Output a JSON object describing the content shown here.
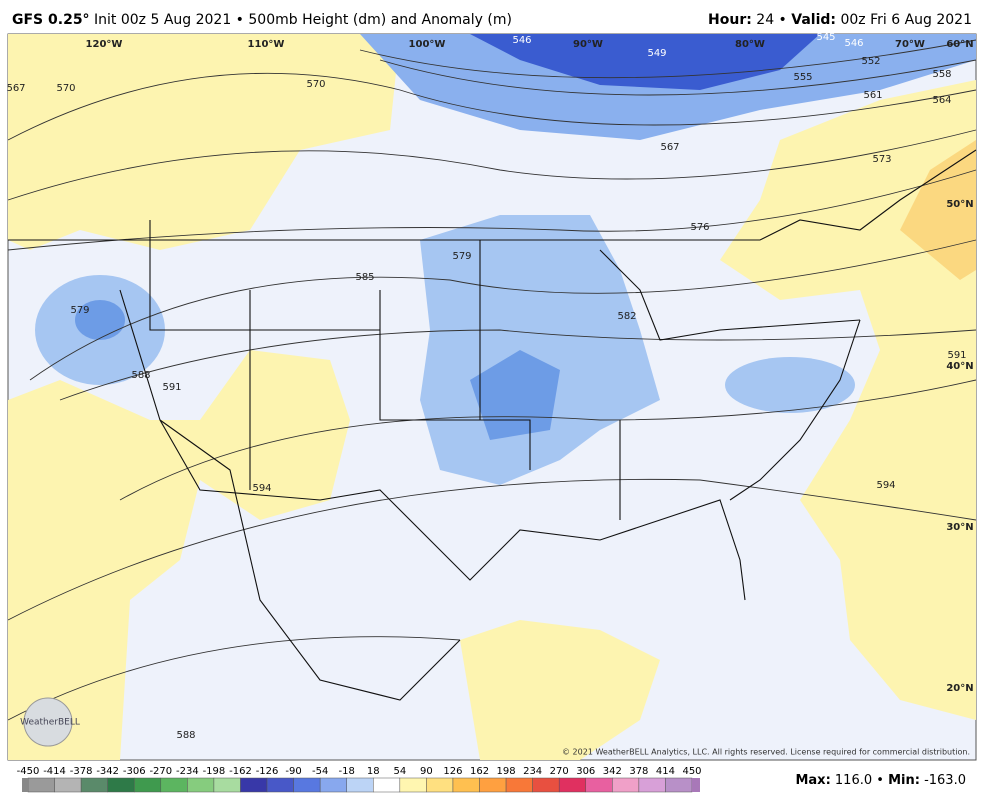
{
  "header": {
    "model": "GFS 0.25°",
    "init": "Init 00z 5 Aug 2021 • 500mb Height (dm) and Anomaly (m)",
    "hour_label": "Hour:",
    "hour": "24 •",
    "valid_label": "Valid:",
    "valid": "00z Fri 6 Aug 2021"
  },
  "map": {
    "lon_labels": [
      "120°W",
      "110°W",
      "100°W",
      "90°W",
      "80°W",
      "70°W"
    ],
    "lat_labels": [
      "60°N",
      "50°N",
      "40°N",
      "30°N",
      "20°N"
    ],
    "contour_labels": [
      "546",
      "549",
      "545",
      "546",
      "552",
      "555",
      "558",
      "561",
      "564",
      "567",
      "573",
      "576",
      "579",
      "585",
      "579",
      "582",
      "588",
      "591",
      "591",
      "594",
      "594",
      "588",
      "570",
      "567",
      "570"
    ],
    "copyright": "© 2021 WeatherBELL Analytics, LLC. All rights reserved. License required for commercial distribution.",
    "logo": "WeatherBELL"
  },
  "colorbar": {
    "ticks": [
      -450,
      -414,
      -378,
      -342,
      -306,
      -270,
      -234,
      -198,
      -162,
      -126,
      -90,
      -54,
      -18,
      18,
      54,
      90,
      126,
      162,
      198,
      234,
      270,
      306,
      342,
      378,
      414,
      450
    ],
    "colors": [
      "#9a9a9a",
      "#b4b4b4",
      "#5a8a6a",
      "#2e7a48",
      "#3f9a4e",
      "#5cb560",
      "#86cc7e",
      "#a8dca0",
      "#3838a8",
      "#4858c8",
      "#5878e0",
      "#88a8ee",
      "#bcd4f6",
      "#ffffff",
      "#fff6b0",
      "#ffe080",
      "#ffc050",
      "#ffa040",
      "#f87838",
      "#e85040",
      "#e03060",
      "#e860a0",
      "#f0a0c8",
      "#d8a0d8",
      "#b890c8"
    ]
  },
  "footer": {
    "max_label": "Max:",
    "max": "116.0 •",
    "min_label": "Min:",
    "min": "-163.0"
  }
}
